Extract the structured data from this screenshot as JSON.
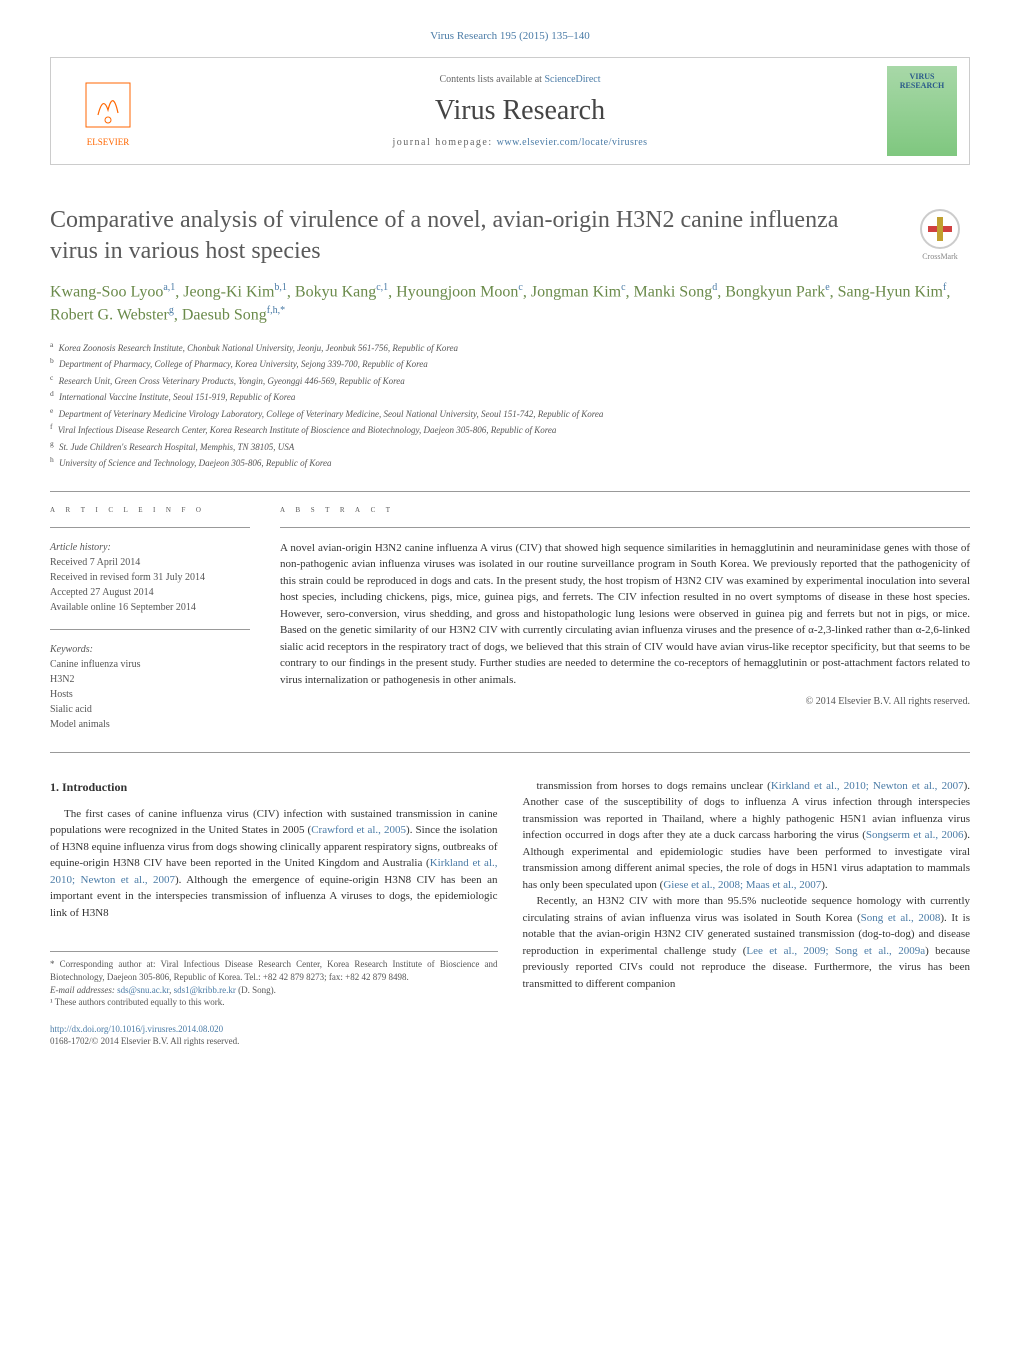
{
  "journal_ref": "Virus Research 195 (2015) 135–140",
  "header": {
    "contents_prefix": "Contents lists available at ",
    "contents_link": "ScienceDirect",
    "journal_name": "Virus Research",
    "homepage_prefix": "journal homepage: ",
    "homepage_link": "www.elsevier.com/locate/virusres",
    "publisher": "ELSEVIER",
    "cover_text_1": "VIRUS",
    "cover_text_2": "RESEARCH"
  },
  "crossmark_label": "CrossMark",
  "title": "Comparative analysis of virulence of a novel, avian-origin H3N2 canine influenza virus in various host species",
  "authors_html": "Kwang-Soo Lyoo<sup>a,1</sup>, Jeong-Ki Kim<sup>b,1</sup>, Bokyu Kang<sup>c,1</sup>, Hyoungjoon Moon<sup>c</sup>, Jongman Kim<sup>c</sup>, Manki Song<sup>d</sup>, Bongkyun Park<sup>e</sup>, Sang-Hyun Kim<sup>f</sup>, Robert G. Webster<sup>g</sup>, Daesub Song<sup>f,h,*</sup>",
  "affiliations": [
    {
      "sup": "a",
      "text": "Korea Zoonosis Research Institute, Chonbuk National University, Jeonju, Jeonbuk 561-756, Republic of Korea"
    },
    {
      "sup": "b",
      "text": "Department of Pharmacy, College of Pharmacy, Korea University, Sejong 339-700, Republic of Korea"
    },
    {
      "sup": "c",
      "text": "Research Unit, Green Cross Veterinary Products, Yongin, Gyeonggi 446-569, Republic of Korea"
    },
    {
      "sup": "d",
      "text": "International Vaccine Institute, Seoul 151-919, Republic of Korea"
    },
    {
      "sup": "e",
      "text": "Department of Veterinary Medicine Virology Laboratory, College of Veterinary Medicine, Seoul National University, Seoul 151-742, Republic of Korea"
    },
    {
      "sup": "f",
      "text": "Viral Infectious Disease Research Center, Korea Research Institute of Bioscience and Biotechnology, Daejeon 305-806, Republic of Korea"
    },
    {
      "sup": "g",
      "text": "St. Jude Children's Research Hospital, Memphis, TN 38105, USA"
    },
    {
      "sup": "h",
      "text": "University of Science and Technology, Daejeon 305-806, Republic of Korea"
    }
  ],
  "info": {
    "heading": "a r t i c l e   i n f o",
    "history_label": "Article history:",
    "history": [
      "Received 7 April 2014",
      "Received in revised form 31 July 2014",
      "Accepted 27 August 2014",
      "Available online 16 September 2014"
    ],
    "keywords_label": "Keywords:",
    "keywords": [
      "Canine influenza virus",
      "H3N2",
      "Hosts",
      "Sialic acid",
      "Model animals"
    ]
  },
  "abstract": {
    "heading": "a b s t r a c t",
    "text": "A novel avian-origin H3N2 canine influenza A virus (CIV) that showed high sequence similarities in hemagglutinin and neuraminidase genes with those of non-pathogenic avian influenza viruses was isolated in our routine surveillance program in South Korea. We previously reported that the pathogenicity of this strain could be reproduced in dogs and cats. In the present study, the host tropism of H3N2 CIV was examined by experimental inoculation into several host species, including chickens, pigs, mice, guinea pigs, and ferrets. The CIV infection resulted in no overt symptoms of disease in these host species. However, sero-conversion, virus shedding, and gross and histopathologic lung lesions were observed in guinea pig and ferrets but not in pigs, or mice. Based on the genetic similarity of our H3N2 CIV with currently circulating avian influenza viruses and the presence of α-2,3-linked rather than α-2,6-linked sialic acid receptors in the respiratory tract of dogs, we believed that this strain of CIV would have avian virus-like receptor specificity, but that seems to be contrary to our findings in the present study. Further studies are needed to determine the co-receptors of hemagglutinin or post-attachment factors related to virus internalization or pathogenesis in other animals.",
    "copyright": "© 2014 Elsevier B.V. All rights reserved."
  },
  "body": {
    "section_heading": "1.  Introduction",
    "col1_p1a": "The first cases of canine influenza virus (CIV) infection with sustained transmission in canine populations were recognized in the United States in 2005 (",
    "col1_ref1": "Crawford et al., 2005",
    "col1_p1b": "). Since the isolation of H3N8 equine influenza virus from dogs showing clinically apparent respiratory signs, outbreaks of equine-origin H3N8 CIV have been reported in the United Kingdom and Australia (",
    "col1_ref2": "Kirkland et al., 2010; Newton et al., 2007",
    "col1_p1c": "). Although the emergence of equine-origin H3N8 CIV has been an important event in the interspecies transmission of influenza A viruses to dogs, the epidemiologic link of H3N8",
    "col2_p1a": "transmission from horses to dogs remains unclear (",
    "col2_ref1": "Kirkland et al., 2010; Newton et al., 2007",
    "col2_p1b": "). Another case of the susceptibility of dogs to influenza A virus infection through interspecies transmission was reported in Thailand, where a highly pathogenic H5N1 avian influenza virus infection occurred in dogs after they ate a duck carcass harboring the virus (",
    "col2_ref2": "Songserm et al., 2006",
    "col2_p1c": "). Although experimental and epidemiologic studies have been performed to investigate viral transmission among different animal species, the role of dogs in H5N1 virus adaptation to mammals has only been speculated upon (",
    "col2_ref3": "Giese et al., 2008; Maas et al., 2007",
    "col2_p1d": ").",
    "col2_p2a": "Recently, an H3N2 CIV with more than 95.5% nucleotide sequence homology with currently circulating strains of avian influenza virus was isolated in South Korea (",
    "col2_ref4": "Song et al., 2008",
    "col2_p2b": "). It is notable that the avian-origin H3N2 CIV generated sustained transmission (dog-to-dog) and disease reproduction in experimental challenge study (",
    "col2_ref5": "Lee et al., 2009; Song et al., 2009a",
    "col2_p2c": ") because previously reported CIVs could not reproduce the disease. Furthermore, the virus has been transmitted to different companion"
  },
  "footnotes": {
    "corr": "* Corresponding author at: Viral Infectious Disease Research Center, Korea Research Institute of Bioscience and Biotechnology, Daejeon 305-806, Republic of Korea. Tel.: +82 42 879 8273; fax: +82 42 879 8498.",
    "email_label": "E-mail addresses: ",
    "email1": "sds@snu.ac.kr",
    "email_sep": ", ",
    "email2": "sds1@kribb.re.kr",
    "email_suffix": " (D. Song).",
    "equal": "¹ These authors contributed equally to this work.",
    "doi": "http://dx.doi.org/10.1016/j.virusres.2014.08.020",
    "issn_copyright": "0168-1702/© 2014 Elsevier B.V. All rights reserved."
  },
  "colors": {
    "link": "#4a7ba6",
    "author": "#6a8a4a",
    "elsevier": "#ff6600"
  }
}
